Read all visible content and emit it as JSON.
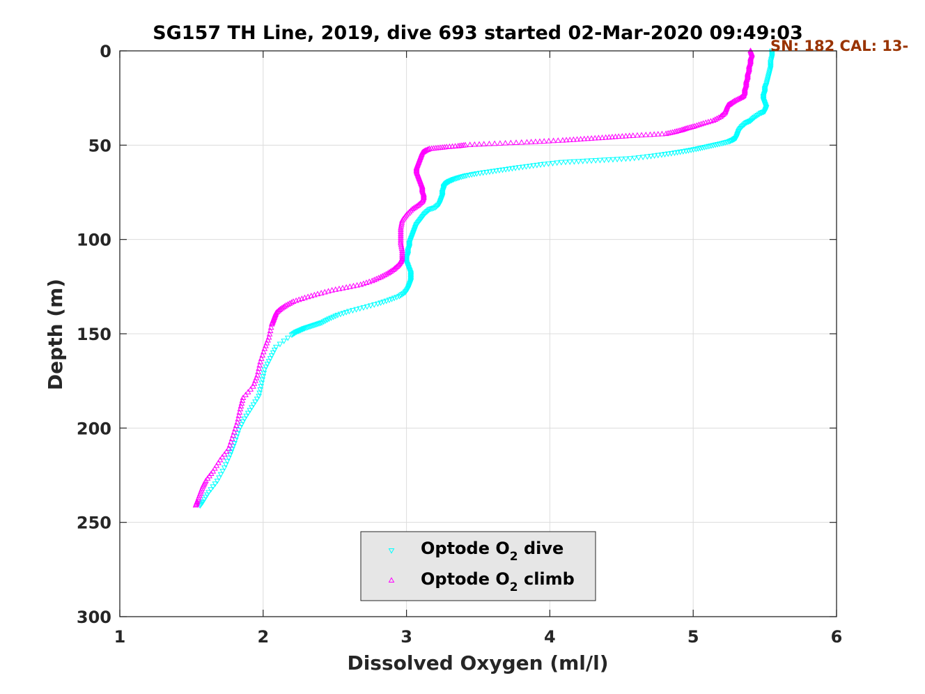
{
  "chart_data": {
    "type": "scatter",
    "title": "SG157 TH Line, 2019, dive 693 started 02-Mar-2020 09:49:03",
    "annotation": "SN: 182  CAL: 13-",
    "annotation_color": "#993300",
    "xlabel": "Dissolved Oxygen (ml/l)",
    "ylabel": "Depth (m)",
    "xlim": [
      1,
      6
    ],
    "ylim": [
      0,
      300
    ],
    "y_reversed": true,
    "x_ticks": [
      "1",
      "2",
      "3",
      "4",
      "5",
      "6"
    ],
    "y_ticks": [
      "0",
      "50",
      "100",
      "150",
      "200",
      "250",
      "300"
    ],
    "grid": true,
    "legend_position": "bottom-center",
    "legend": [
      {
        "prefix": "Optode O",
        "sub": "2",
        "suffix": " dive"
      },
      {
        "prefix": "Optode O",
        "sub": "2",
        "suffix": " climb"
      }
    ],
    "series": [
      {
        "name": "Optode O2 dive",
        "marker": "triangle-down",
        "color": "#00ffff",
        "points": [
          [
            5.55,
            0
          ],
          [
            5.55,
            3
          ],
          [
            5.54,
            6
          ],
          [
            5.54,
            9
          ],
          [
            5.53,
            12
          ],
          [
            5.52,
            15
          ],
          [
            5.51,
            18
          ],
          [
            5.5,
            20
          ],
          [
            5.5,
            22
          ],
          [
            5.49,
            24
          ],
          [
            5.49,
            26
          ],
          [
            5.5,
            28
          ],
          [
            5.51,
            30
          ],
          [
            5.5,
            32
          ],
          [
            5.47,
            33
          ],
          [
            5.43,
            35
          ],
          [
            5.4,
            37
          ],
          [
            5.37,
            38
          ],
          [
            5.34,
            40
          ],
          [
            5.32,
            42
          ],
          [
            5.31,
            44
          ],
          [
            5.3,
            46
          ],
          [
            5.28,
            47
          ],
          [
            5.25,
            48
          ],
          [
            5.2,
            49
          ],
          [
            5.14,
            50
          ],
          [
            5.08,
            51
          ],
          [
            5.02,
            52
          ],
          [
            4.95,
            53
          ],
          [
            4.87,
            54
          ],
          [
            4.78,
            55
          ],
          [
            4.68,
            56
          ],
          [
            4.56,
            57
          ],
          [
            4.44,
            57.5
          ],
          [
            4.32,
            58
          ],
          [
            4.2,
            58.5
          ],
          [
            4.08,
            59
          ],
          [
            3.96,
            60
          ],
          [
            3.86,
            61
          ],
          [
            3.76,
            62
          ],
          [
            3.67,
            63
          ],
          [
            3.58,
            64
          ],
          [
            3.49,
            65
          ],
          [
            3.42,
            66
          ],
          [
            3.37,
            67
          ],
          [
            3.33,
            68
          ],
          [
            3.3,
            69
          ],
          [
            3.28,
            70
          ],
          [
            3.27,
            71
          ],
          [
            3.26,
            72
          ],
          [
            3.26,
            73
          ],
          [
            3.25,
            75
          ],
          [
            3.25,
            77
          ],
          [
            3.24,
            79
          ],
          [
            3.23,
            81
          ],
          [
            3.2,
            83
          ],
          [
            3.16,
            84
          ],
          [
            3.13,
            86
          ],
          [
            3.11,
            88
          ],
          [
            3.09,
            90
          ],
          [
            3.07,
            92
          ],
          [
            3.06,
            94
          ],
          [
            3.05,
            96
          ],
          [
            3.04,
            98
          ],
          [
            3.03,
            100
          ],
          [
            3.02,
            102
          ],
          [
            3.02,
            104
          ],
          [
            3.01,
            106
          ],
          [
            3.01,
            108
          ],
          [
            3.0,
            110
          ],
          [
            3.0,
            112
          ],
          [
            3.01,
            114
          ],
          [
            3.02,
            116
          ],
          [
            3.03,
            118
          ],
          [
            3.03,
            120
          ],
          [
            3.03,
            122
          ],
          [
            3.02,
            124
          ],
          [
            3.01,
            126
          ],
          [
            2.99,
            128
          ],
          [
            2.95,
            130
          ],
          [
            2.88,
            132
          ],
          [
            2.8,
            134
          ],
          [
            2.7,
            136
          ],
          [
            2.6,
            138
          ],
          [
            2.52,
            140
          ],
          [
            2.46,
            142
          ],
          [
            2.41,
            144
          ],
          [
            2.37,
            145
          ],
          [
            2.33,
            146
          ],
          [
            2.29,
            147
          ],
          [
            2.26,
            148
          ],
          [
            2.23,
            149
          ],
          [
            2.2,
            150.5
          ],
          [
            2.09,
            157
          ],
          [
            2.05,
            163
          ],
          [
            2.01,
            169
          ],
          [
            1.99,
            176
          ],
          [
            1.97,
            183
          ],
          [
            1.92,
            189
          ],
          [
            1.87,
            195
          ],
          [
            1.83,
            201
          ],
          [
            1.8,
            208
          ],
          [
            1.77,
            214
          ],
          [
            1.73,
            221
          ],
          [
            1.68,
            228
          ],
          [
            1.62,
            234
          ],
          [
            1.58,
            239
          ],
          [
            1.56,
            241
          ]
        ]
      },
      {
        "name": "Optode O2 climb",
        "marker": "triangle-up",
        "color": "#ff00ff",
        "points": [
          [
            5.4,
            0
          ],
          [
            5.41,
            2
          ],
          [
            5.4,
            4
          ],
          [
            5.4,
            6
          ],
          [
            5.39,
            8
          ],
          [
            5.39,
            10
          ],
          [
            5.38,
            12
          ],
          [
            5.38,
            14
          ],
          [
            5.37,
            16
          ],
          [
            5.37,
            18
          ],
          [
            5.36,
            20
          ],
          [
            5.36,
            22
          ],
          [
            5.35,
            24
          ],
          [
            5.33,
            25
          ],
          [
            5.29,
            26.5
          ],
          [
            5.26,
            28
          ],
          [
            5.24,
            29
          ],
          [
            5.23,
            31
          ],
          [
            5.22,
            33
          ],
          [
            5.19,
            35
          ],
          [
            5.14,
            37
          ],
          [
            5.07,
            38.5
          ],
          [
            5.01,
            40
          ],
          [
            4.96,
            41
          ],
          [
            4.92,
            42
          ],
          [
            4.87,
            43
          ],
          [
            4.81,
            44
          ],
          [
            4.7,
            44.5
          ],
          [
            4.58,
            45
          ],
          [
            4.48,
            45.5
          ],
          [
            4.39,
            46
          ],
          [
            4.29,
            46.5
          ],
          [
            4.19,
            47
          ],
          [
            4.09,
            47.5
          ],
          [
            3.96,
            48
          ],
          [
            3.84,
            48.5
          ],
          [
            3.69,
            49
          ],
          [
            3.54,
            49.5
          ],
          [
            3.41,
            50
          ],
          [
            3.36,
            50.5
          ],
          [
            3.28,
            51
          ],
          [
            3.22,
            51.5
          ],
          [
            3.16,
            52
          ],
          [
            3.13,
            53
          ],
          [
            3.11,
            54
          ],
          [
            3.1,
            56
          ],
          [
            3.09,
            58
          ],
          [
            3.08,
            60
          ],
          [
            3.07,
            62
          ],
          [
            3.07,
            64
          ],
          [
            3.08,
            66
          ],
          [
            3.09,
            68
          ],
          [
            3.1,
            70
          ],
          [
            3.11,
            72
          ],
          [
            3.11,
            74
          ],
          [
            3.12,
            76
          ],
          [
            3.12,
            78
          ],
          [
            3.11,
            80
          ],
          [
            3.08,
            82
          ],
          [
            3.04,
            84
          ],
          [
            3.0,
            87
          ],
          [
            2.97,
            90
          ],
          [
            2.96,
            94
          ],
          [
            2.96,
            98
          ],
          [
            2.96,
            102
          ],
          [
            2.97,
            106
          ],
          [
            2.97,
            110
          ],
          [
            2.96,
            112
          ],
          [
            2.94,
            114
          ],
          [
            2.91,
            116
          ],
          [
            2.87,
            118
          ],
          [
            2.82,
            120
          ],
          [
            2.76,
            122
          ],
          [
            2.68,
            124
          ],
          [
            2.58,
            125.5
          ],
          [
            2.48,
            127
          ],
          [
            2.38,
            129
          ],
          [
            2.29,
            131
          ],
          [
            2.21,
            133
          ],
          [
            2.16,
            135
          ],
          [
            2.12,
            137
          ],
          [
            2.09,
            139
          ],
          [
            2.08,
            141
          ],
          [
            2.07,
            143
          ],
          [
            2.06,
            145
          ],
          [
            2.04,
            152
          ],
          [
            2.01,
            158
          ],
          [
            1.98,
            165
          ],
          [
            1.96,
            172
          ],
          [
            1.93,
            178
          ],
          [
            1.86,
            184
          ],
          [
            1.84,
            190
          ],
          [
            1.82,
            197
          ],
          [
            1.79,
            204
          ],
          [
            1.76,
            211
          ],
          [
            1.7,
            217
          ],
          [
            1.65,
            223
          ],
          [
            1.6,
            228
          ],
          [
            1.58,
            231
          ],
          [
            1.56,
            235
          ],
          [
            1.54,
            239
          ],
          [
            1.53,
            241
          ]
        ]
      }
    ]
  }
}
